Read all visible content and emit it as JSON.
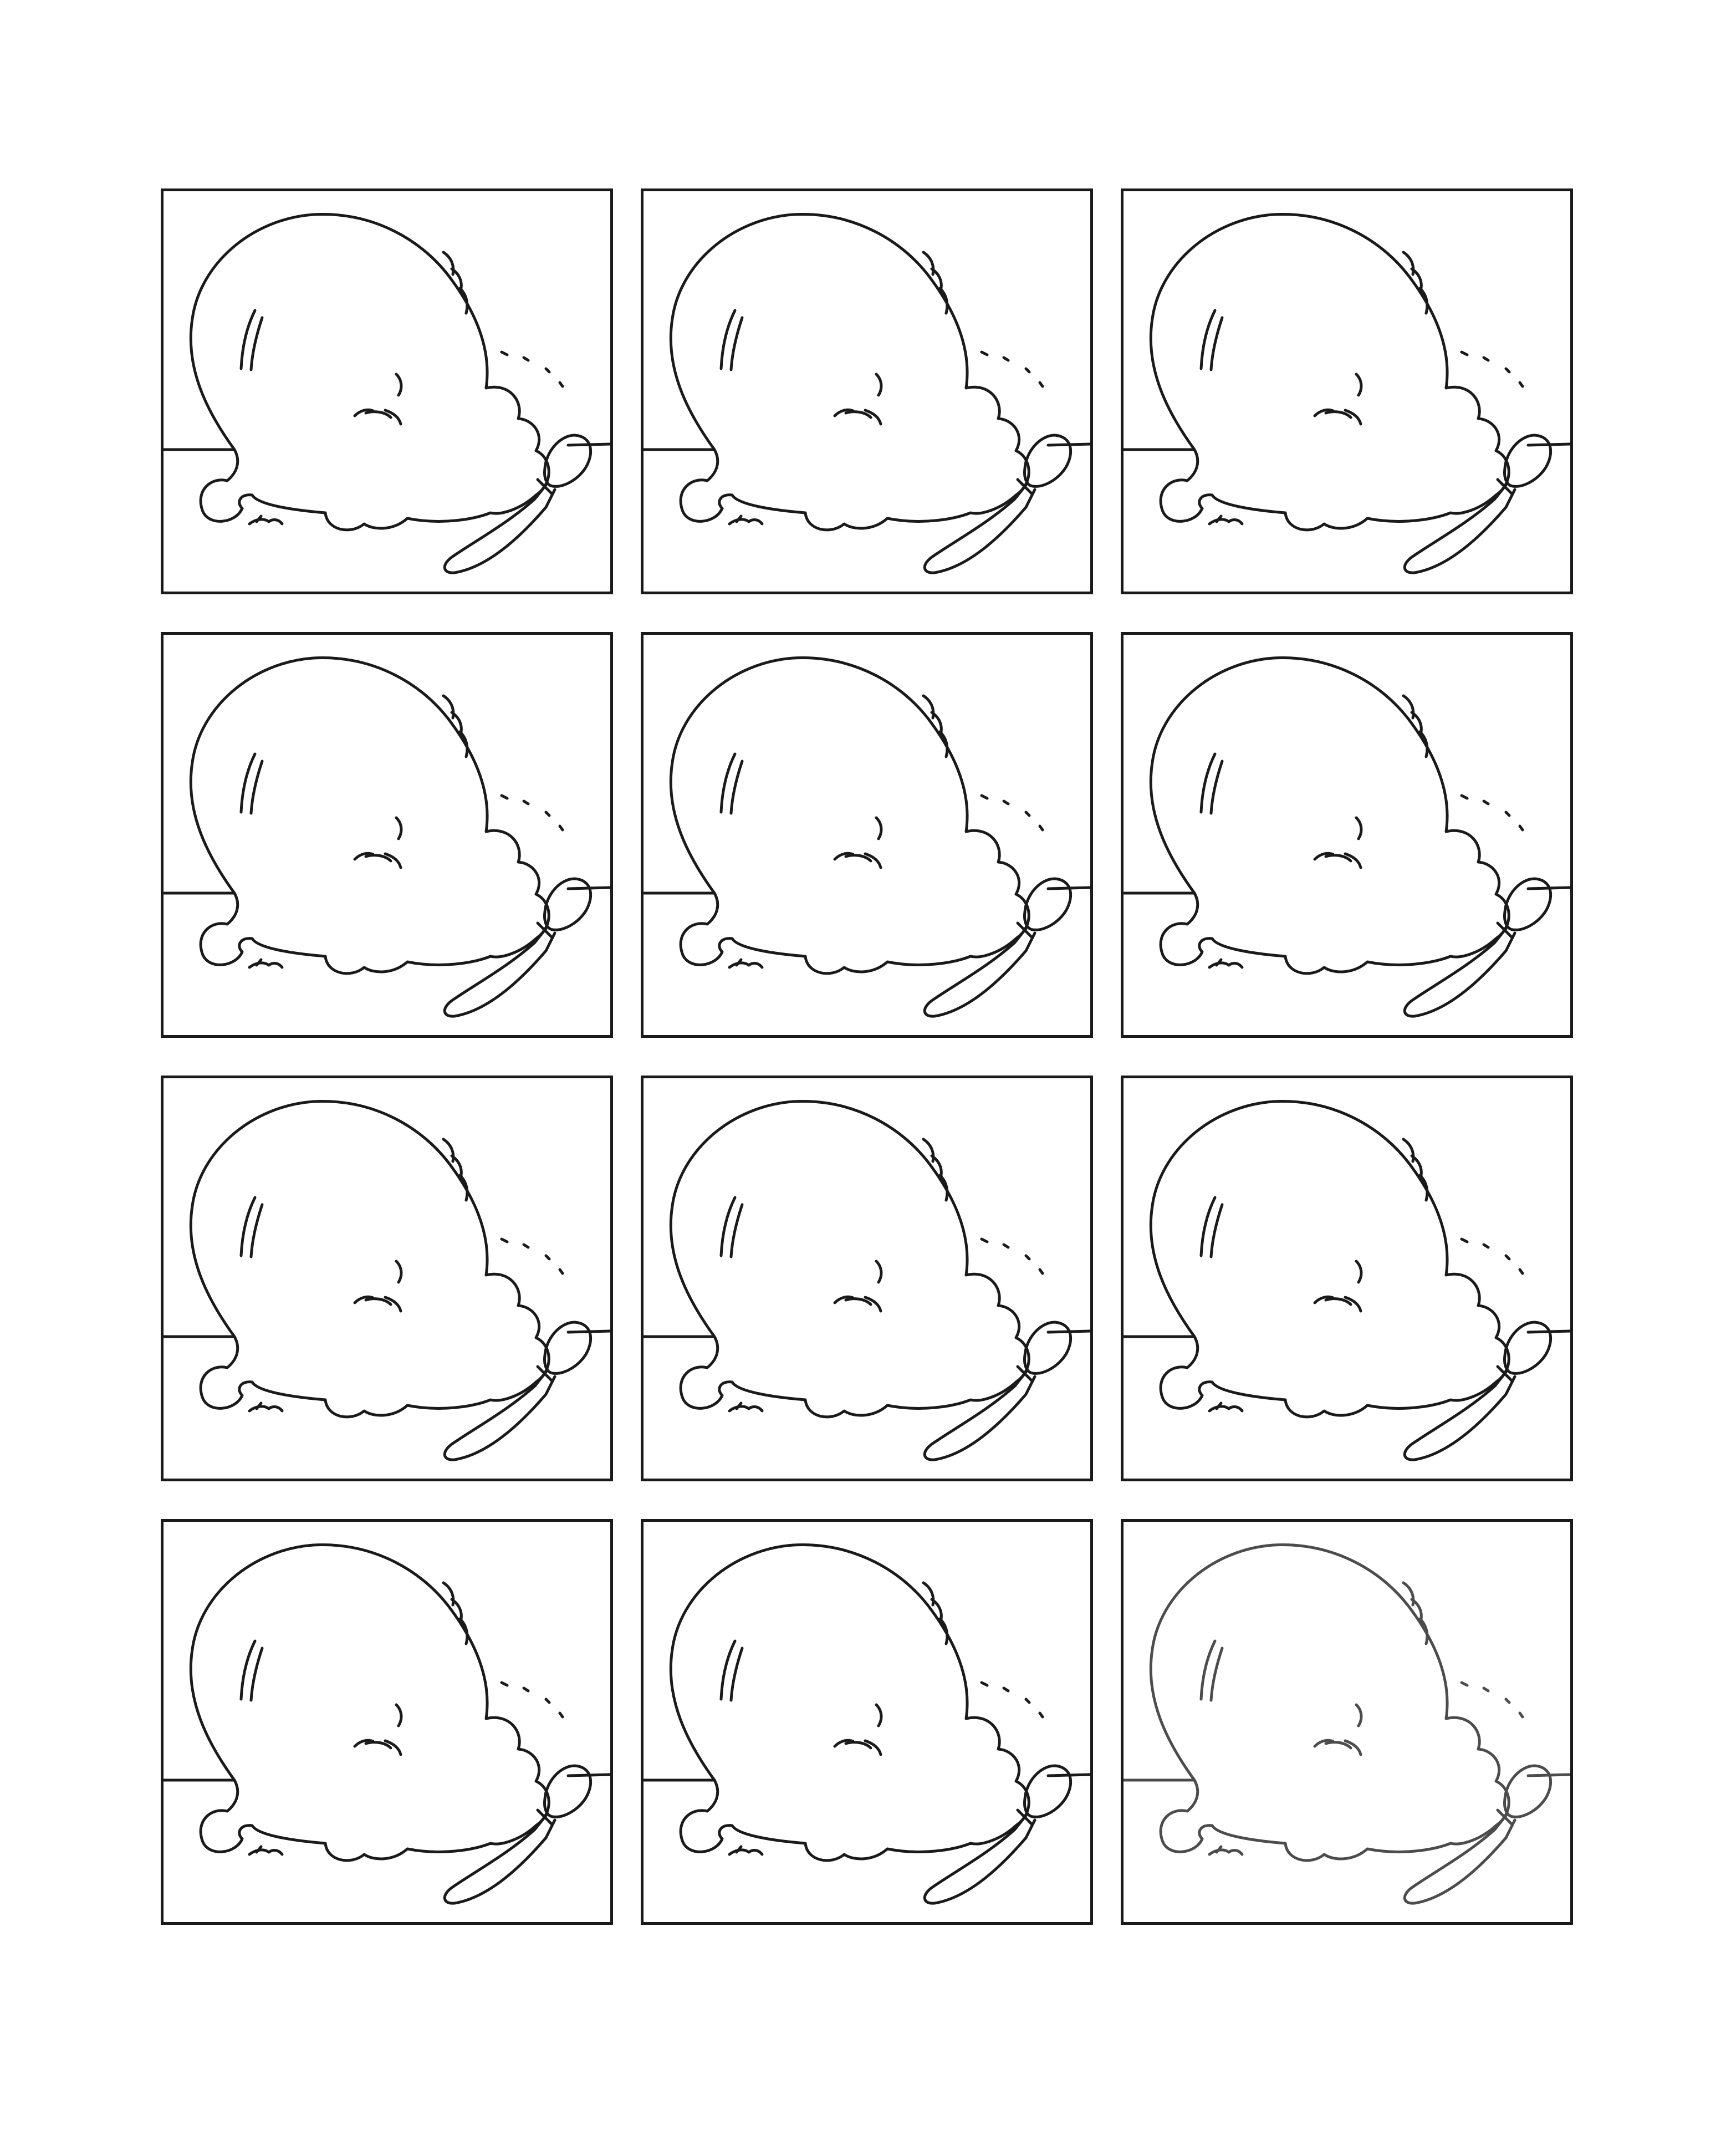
{
  "sheet": {
    "panel_count": 12,
    "columns": 3,
    "rows": 4,
    "panel_subject": "melted-ice-cream-scoop-with-spoon",
    "colors": {
      "line": "#1a1a1a",
      "background": "#ffffff"
    }
  }
}
